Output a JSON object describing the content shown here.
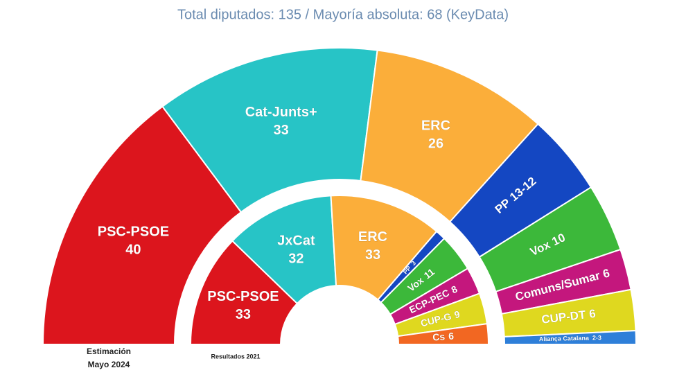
{
  "chart_data": [
    {
      "type": "half-donut",
      "subtitle": "Total diputados: 135 / Mayoría absoluta: 68 (KeyData)",
      "caption": [
        "Estimación",
        "Mayo 2024"
      ],
      "categories": [
        "PSC-PSOE",
        "Cat-Junts+",
        "ERC",
        "PP",
        "Vox",
        "Comuns/Sumar",
        "CUP-DT",
        "Aliança Catalana"
      ],
      "values": [
        40,
        33,
        26,
        12,
        10,
        6,
        6,
        2
      ],
      "value_labels": [
        "40",
        "33",
        "26",
        "13-12",
        "10",
        "6",
        "6",
        "2-3"
      ],
      "colors": [
        "#dc151d",
        "#27c4c6",
        "#fbae3a",
        "#1447c2",
        "#3cb83a",
        "#c4177d",
        "#dfd81f",
        "#2e7fd9"
      ]
    },
    {
      "type": "half-donut",
      "caption": [
        "Resultados 2021"
      ],
      "categories": [
        "PSC-PSOE",
        "JxCat",
        "ERC",
        "PP",
        "Vox",
        "ECP-PEC",
        "CUP-G",
        "Cs"
      ],
      "values": [
        33,
        32,
        33,
        3,
        11,
        8,
        9,
        6
      ],
      "colors": [
        "#dc151d",
        "#27c4c6",
        "#fbae3a",
        "#1447c2",
        "#3cb83a",
        "#c4177d",
        "#dfd81f",
        "#f26722"
      ]
    }
  ]
}
